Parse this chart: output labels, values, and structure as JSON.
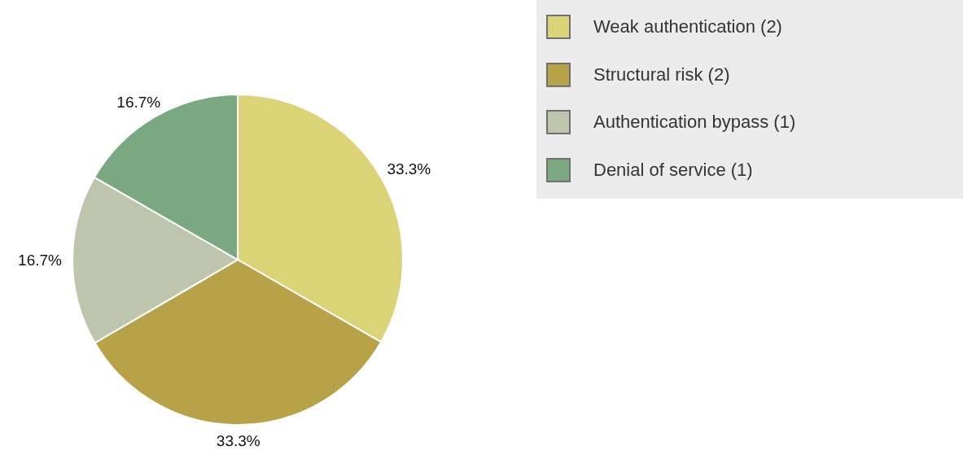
{
  "chart_data": {
    "type": "pie",
    "categories": [
      "Weak authentication (2)",
      "Structural risk (2)",
      "Authentication bypass (1)",
      "Denial of service (1)"
    ],
    "values": [
      33.3,
      33.3,
      16.7,
      16.7
    ],
    "value_labels": [
      "33.3%",
      "33.3%",
      "16.7%",
      "16.7%"
    ],
    "colors": [
      "#dad477",
      "#b8a247",
      "#bdc5ad",
      "#7aa880"
    ],
    "legend": "top right"
  }
}
